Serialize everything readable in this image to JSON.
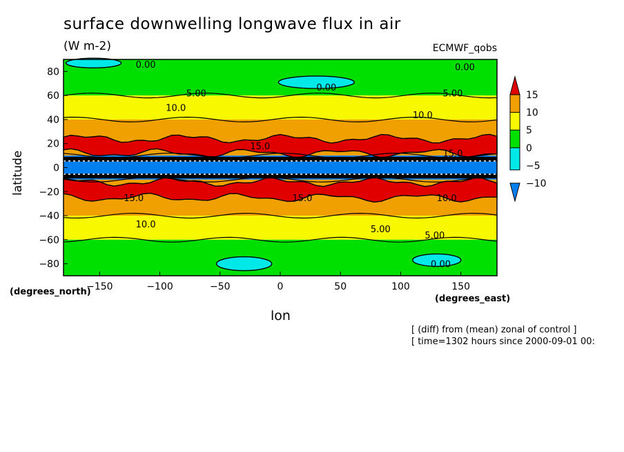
{
  "title": "surface downwelling longwave flux in air",
  "units": "(W m-2)",
  "source": "ECMWF_qobs",
  "notes": [
    "[ (diff) from (mean) zonal of control ]",
    "[ time=1302 hours since 2000-09-01 00:"
  ],
  "chart_data": {
    "type": "heatmap",
    "xlabel": "lon",
    "ylabel": "latitude",
    "x_unit": "(degrees_east)",
    "y_unit": "(degrees_north)",
    "xlim": [
      -180,
      180
    ],
    "ylim": [
      -90,
      90
    ],
    "x_ticks": [
      -150,
      -100,
      -50,
      0,
      50,
      100,
      150
    ],
    "y_ticks": [
      80,
      60,
      40,
      20,
      0,
      -20,
      -40,
      -60,
      -80
    ],
    "colorbar": {
      "levels": [
        15,
        10,
        5,
        0,
        -5,
        -10
      ],
      "colors": [
        "#e00000",
        "#f0a000",
        "#f8f800",
        "#00e000",
        "#00e8e8",
        "#0080f0"
      ],
      "extend": "both"
    },
    "zonal_bands": [
      {
        "lat_range": [
          60,
          90
        ],
        "color": "#00e000"
      },
      {
        "lat_range": [
          40,
          60
        ],
        "color": "#f8f800"
      },
      {
        "lat_range": [
          10,
          40
        ],
        "color": "#f0a000"
      },
      {
        "lat_range": [
          -10,
          10
        ],
        "color": "#0080f0"
      },
      {
        "lat_range": [
          -40,
          -10
        ],
        "color": "#f0a000"
      },
      {
        "lat_range": [
          -60,
          -40
        ],
        "color": "#f8f800"
      },
      {
        "lat_range": [
          -90,
          -60
        ],
        "color": "#00e000"
      }
    ],
    "contour_labels": [
      "0.00",
      "0.00",
      "0.00",
      "5.00",
      "5.00",
      "10.0",
      "10.0",
      "15.0",
      "15.0",
      "15.0",
      "15.0",
      "10.0",
      "10.0",
      "5.00",
      "5.00",
      "0.00"
    ]
  }
}
